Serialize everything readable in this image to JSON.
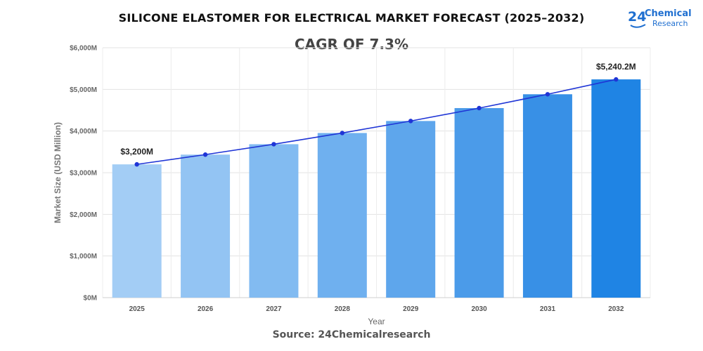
{
  "header": {
    "title": "SILICONE ELASTOMER FOR ELECTRICAL MARKET FORECAST (2025–2032)",
    "cagr": "CAGR OF 7.3%",
    "logo_number": "24",
    "logo_word_1": "Chemical",
    "logo_word_2": "Research",
    "brand_color": "#1f6fd0"
  },
  "footer": {
    "source": "Source: 24Chemicalresearch"
  },
  "chart_data": {
    "type": "bar",
    "title": "SILICONE ELASTOMER FOR ELECTRICAL MARKET FORECAST (2025–2032)",
    "xlabel": "Year",
    "ylabel": "Market Size (USD Million)",
    "ylim": [
      0,
      6000
    ],
    "yticks": [
      0,
      1000,
      2000,
      3000,
      4000,
      5000,
      6000
    ],
    "ytick_labels": [
      "$0M",
      "$1,000M",
      "$2,000M",
      "$3,000M",
      "$4,000M",
      "$5,000M",
      "$6,000M"
    ],
    "categories": [
      "2025",
      "2026",
      "2027",
      "2028",
      "2029",
      "2030",
      "2031",
      "2032"
    ],
    "values": [
      3200,
      3434,
      3684,
      3953,
      4241,
      4551,
      4883,
      5240.2
    ],
    "bar_colors": [
      "#a3cdf5",
      "#93c4f3",
      "#82bbf1",
      "#6fb0ef",
      "#5ea6ec",
      "#4b9be9",
      "#3890e6",
      "#1f84e4"
    ],
    "trend_line": true,
    "trend_color": "#1f35d6",
    "grid": true,
    "annotations": [
      {
        "index": 0,
        "text": "$3,200M"
      },
      {
        "index": 7,
        "text": "$5,240.2M"
      }
    ]
  }
}
